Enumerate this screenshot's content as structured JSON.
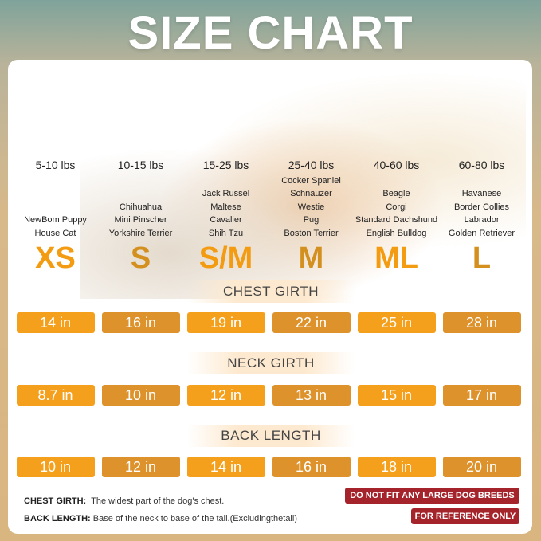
{
  "title": "SIZE CHART",
  "colors": {
    "orange": "#f5a01c",
    "dark_orange": "#dd922b",
    "warning_red": "#a5232a"
  },
  "sizes": [
    {
      "label": "XS",
      "weight": "5-10 lbs",
      "breeds": [
        "NewBom Puppy",
        "House Cat"
      ],
      "chest": "14 in",
      "neck": "8.7 in",
      "back": "10 in"
    },
    {
      "label": "S",
      "weight": "10-15 lbs",
      "breeds": [
        "Chihuahua",
        "Mini Pinscher",
        "Yorkshire Terrier"
      ],
      "chest": "16 in",
      "neck": "10 in",
      "back": "12 in"
    },
    {
      "label": "S/M",
      "weight": "15-25 lbs",
      "breeds": [
        "Jack Russel",
        "Maltese",
        "Cavalier",
        "Shih Tzu"
      ],
      "chest": "19 in",
      "neck": "12 in",
      "back": "14 in"
    },
    {
      "label": "M",
      "weight": "25-40 lbs",
      "breeds": [
        "Cocker Spaniel",
        "Schnauzer",
        "Westie",
        "Pug",
        "Boston Terrier"
      ],
      "chest": "22 in",
      "neck": "13 in",
      "back": "16 in"
    },
    {
      "label": "ML",
      "weight": "40-60 lbs",
      "breeds": [
        "Beagle",
        "Corgi",
        "Standard Dachshund",
        "English Bulldog"
      ],
      "chest": "25 in",
      "neck": "15 in",
      "back": "18 in"
    },
    {
      "label": "L",
      "weight": "60-80 lbs",
      "breeds": [
        "Havanese",
        "Border Collies",
        "Labrador",
        "Golden Retriever"
      ],
      "chest": "28 in",
      "neck": "17 in",
      "back": "20 in"
    }
  ],
  "headers": {
    "chest": "CHEST GIRTH",
    "neck": "NECK GIRTH",
    "back": "BACK LENGTH"
  },
  "notes": {
    "chest_label": "CHEST GIRTH:",
    "chest_text": "The widest part of the dog's chest.",
    "back_label": "BACK LENGTH:",
    "back_text": "Base of the neck to base of the tail.(Excludingthetail)"
  },
  "badges": {
    "large": "DO NOT FIT ANY LARGE DOG BREEDS",
    "reference": "FOR REFERENCE ONLY"
  }
}
